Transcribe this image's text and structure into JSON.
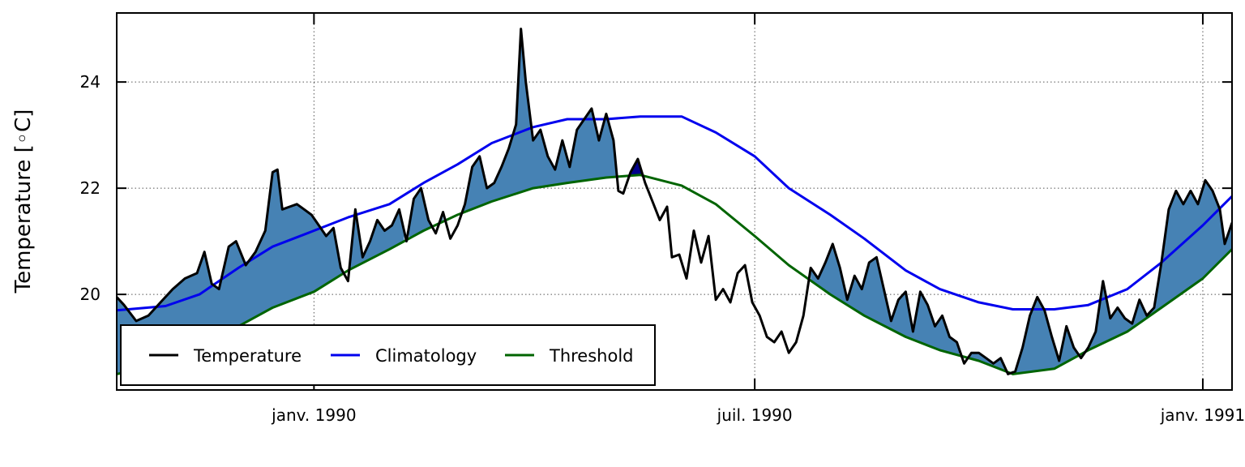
{
  "chart_data": {
    "type": "line",
    "title": "",
    "xlabel": "",
    "ylabel": "Temperature [◦C]",
    "x_range": [
      "1989-10-12",
      "1991-01-13"
    ],
    "ylim": [
      18.2,
      25.3
    ],
    "y_ticks": [
      20,
      22,
      24
    ],
    "x_ticks": [
      {
        "date": "1990-01-01",
        "label": "janv. 1990"
      },
      {
        "date": "1990-07-01",
        "label": "juil. 1990"
      },
      {
        "date": "1991-01-01",
        "label": "janv. 1991"
      }
    ],
    "grid": true,
    "grid_style": "dotted",
    "legend_position": "lower-left",
    "colors": {
      "temperature": "#000000",
      "climatology": "#0000ee",
      "threshold": "#006400",
      "event_fill": "#00008b",
      "exceedance_fill": "#4682b4"
    },
    "series": [
      {
        "name": "Temperature",
        "key": "temperature",
        "points": [
          [
            "1989-10-12",
            19.95
          ],
          [
            "1989-10-15",
            19.8
          ],
          [
            "1989-10-20",
            19.5
          ],
          [
            "1989-10-25",
            19.6
          ],
          [
            "1989-10-30",
            19.85
          ],
          [
            "1989-11-04",
            20.1
          ],
          [
            "1989-11-09",
            20.3
          ],
          [
            "1989-11-14",
            20.4
          ],
          [
            "1989-11-17",
            20.8
          ],
          [
            "1989-11-20",
            20.2
          ],
          [
            "1989-11-23",
            20.1
          ],
          [
            "1989-11-27",
            20.9
          ],
          [
            "1989-11-30",
            21.0
          ],
          [
            "1989-12-04",
            20.55
          ],
          [
            "1989-12-08",
            20.8
          ],
          [
            "1989-12-12",
            21.2
          ],
          [
            "1989-12-15",
            22.3
          ],
          [
            "1989-12-17",
            22.35
          ],
          [
            "1989-12-19",
            21.6
          ],
          [
            "1989-12-22",
            21.65
          ],
          [
            "1989-12-25",
            21.7
          ],
          [
            "1989-12-28",
            21.6
          ],
          [
            "1989-12-31",
            21.5
          ],
          [
            "1990-01-03",
            21.3
          ],
          [
            "1990-01-06",
            21.1
          ],
          [
            "1990-01-09",
            21.25
          ],
          [
            "1990-01-12",
            20.5
          ],
          [
            "1990-01-15",
            20.25
          ],
          [
            "1990-01-18",
            21.6
          ],
          [
            "1990-01-21",
            20.7
          ],
          [
            "1990-01-24",
            21.0
          ],
          [
            "1990-01-27",
            21.4
          ],
          [
            "1990-01-30",
            21.2
          ],
          [
            "1990-02-02",
            21.3
          ],
          [
            "1990-02-05",
            21.6
          ],
          [
            "1990-02-08",
            21.0
          ],
          [
            "1990-02-11",
            21.8
          ],
          [
            "1990-02-14",
            22.0
          ],
          [
            "1990-02-17",
            21.4
          ],
          [
            "1990-02-20",
            21.15
          ],
          [
            "1990-02-23",
            21.55
          ],
          [
            "1990-02-26",
            21.05
          ],
          [
            "1990-03-01",
            21.3
          ],
          [
            "1990-03-04",
            21.7
          ],
          [
            "1990-03-07",
            22.4
          ],
          [
            "1990-03-10",
            22.6
          ],
          [
            "1990-03-13",
            22.0
          ],
          [
            "1990-03-16",
            22.1
          ],
          [
            "1990-03-19",
            22.4
          ],
          [
            "1990-03-22",
            22.75
          ],
          [
            "1990-03-25",
            23.2
          ],
          [
            "1990-03-27",
            25.0
          ],
          [
            "1990-03-29",
            24.0
          ],
          [
            "1990-04-01",
            22.9
          ],
          [
            "1990-04-04",
            23.1
          ],
          [
            "1990-04-07",
            22.6
          ],
          [
            "1990-04-10",
            22.35
          ],
          [
            "1990-04-13",
            22.9
          ],
          [
            "1990-04-16",
            22.4
          ],
          [
            "1990-04-19",
            23.1
          ],
          [
            "1990-04-22",
            23.3
          ],
          [
            "1990-04-25",
            23.5
          ],
          [
            "1990-04-28",
            22.9
          ],
          [
            "1990-05-01",
            23.4
          ],
          [
            "1990-05-04",
            22.9
          ],
          [
            "1990-05-06",
            21.95
          ],
          [
            "1990-05-08",
            21.9
          ],
          [
            "1990-05-11",
            22.3
          ],
          [
            "1990-05-14",
            22.55
          ],
          [
            "1990-05-17",
            22.1
          ],
          [
            "1990-05-20",
            21.75
          ],
          [
            "1990-05-23",
            21.4
          ],
          [
            "1990-05-26",
            21.65
          ],
          [
            "1990-05-28",
            20.7
          ],
          [
            "1990-05-31",
            20.75
          ],
          [
            "1990-06-03",
            20.3
          ],
          [
            "1990-06-06",
            21.2
          ],
          [
            "1990-06-09",
            20.6
          ],
          [
            "1990-06-12",
            21.1
          ],
          [
            "1990-06-15",
            19.9
          ],
          [
            "1990-06-18",
            20.1
          ],
          [
            "1990-06-21",
            19.85
          ],
          [
            "1990-06-24",
            20.4
          ],
          [
            "1990-06-27",
            20.55
          ],
          [
            "1990-06-30",
            19.85
          ],
          [
            "1990-07-03",
            19.6
          ],
          [
            "1990-07-06",
            19.2
          ],
          [
            "1990-07-09",
            19.1
          ],
          [
            "1990-07-12",
            19.3
          ],
          [
            "1990-07-15",
            18.9
          ],
          [
            "1990-07-18",
            19.1
          ],
          [
            "1990-07-21",
            19.6
          ],
          [
            "1990-07-24",
            20.5
          ],
          [
            "1990-07-27",
            20.3
          ],
          [
            "1990-07-30",
            20.6
          ],
          [
            "1990-08-02",
            20.95
          ],
          [
            "1990-08-05",
            20.5
          ],
          [
            "1990-08-08",
            19.9
          ],
          [
            "1990-08-11",
            20.35
          ],
          [
            "1990-08-14",
            20.1
          ],
          [
            "1990-08-17",
            20.6
          ],
          [
            "1990-08-20",
            20.7
          ],
          [
            "1990-08-23",
            20.1
          ],
          [
            "1990-08-26",
            19.5
          ],
          [
            "1990-08-29",
            19.9
          ],
          [
            "1990-09-01",
            20.05
          ],
          [
            "1990-09-04",
            19.3
          ],
          [
            "1990-09-07",
            20.05
          ],
          [
            "1990-09-10",
            19.8
          ],
          [
            "1990-09-13",
            19.4
          ],
          [
            "1990-09-16",
            19.6
          ],
          [
            "1990-09-19",
            19.2
          ],
          [
            "1990-09-22",
            19.1
          ],
          [
            "1990-09-25",
            18.7
          ],
          [
            "1990-09-28",
            18.9
          ],
          [
            "1990-10-01",
            18.9
          ],
          [
            "1990-10-04",
            18.8
          ],
          [
            "1990-10-07",
            18.7
          ],
          [
            "1990-10-10",
            18.8
          ],
          [
            "1990-10-13",
            18.5
          ],
          [
            "1990-10-16",
            18.55
          ],
          [
            "1990-10-19",
            19.0
          ],
          [
            "1990-10-22",
            19.6
          ],
          [
            "1990-10-25",
            19.95
          ],
          [
            "1990-10-28",
            19.7
          ],
          [
            "1990-10-31",
            19.2
          ],
          [
            "1990-11-03",
            18.75
          ],
          [
            "1990-11-06",
            19.4
          ],
          [
            "1990-11-09",
            19.0
          ],
          [
            "1990-11-12",
            18.8
          ],
          [
            "1990-11-15",
            19.0
          ],
          [
            "1990-11-18",
            19.3
          ],
          [
            "1990-11-21",
            20.25
          ],
          [
            "1990-11-24",
            19.55
          ],
          [
            "1990-11-27",
            19.75
          ],
          [
            "1990-11-30",
            19.55
          ],
          [
            "1990-12-03",
            19.45
          ],
          [
            "1990-12-06",
            19.9
          ],
          [
            "1990-12-09",
            19.6
          ],
          [
            "1990-12-12",
            19.75
          ],
          [
            "1990-12-15",
            20.6
          ],
          [
            "1990-12-18",
            21.6
          ],
          [
            "1990-12-21",
            21.95
          ],
          [
            "1990-12-24",
            21.7
          ],
          [
            "1990-12-27",
            21.95
          ],
          [
            "1990-12-30",
            21.7
          ],
          [
            "1991-01-02",
            22.15
          ],
          [
            "1991-01-05",
            21.95
          ],
          [
            "1991-01-08",
            21.6
          ],
          [
            "1991-01-10",
            20.95
          ],
          [
            "1991-01-13",
            21.35
          ]
        ]
      },
      {
        "name": "Climatology",
        "key": "climatology",
        "points": [
          [
            "1989-10-12",
            19.7
          ],
          [
            "1989-11-01",
            19.78
          ],
          [
            "1989-11-15",
            20.0
          ],
          [
            "1989-12-01",
            20.5
          ],
          [
            "1989-12-15",
            20.9
          ],
          [
            "1990-01-01",
            21.2
          ],
          [
            "1990-01-15",
            21.45
          ],
          [
            "1990-02-01",
            21.7
          ],
          [
            "1990-02-15",
            22.1
          ],
          [
            "1990-03-01",
            22.45
          ],
          [
            "1990-03-15",
            22.85
          ],
          [
            "1990-04-01",
            23.15
          ],
          [
            "1990-04-15",
            23.3
          ],
          [
            "1990-05-01",
            23.3
          ],
          [
            "1990-05-15",
            23.35
          ],
          [
            "1990-06-01",
            23.35
          ],
          [
            "1990-06-15",
            23.05
          ],
          [
            "1990-07-01",
            22.6
          ],
          [
            "1990-07-15",
            22.0
          ],
          [
            "1990-08-01",
            21.5
          ],
          [
            "1990-08-15",
            21.05
          ],
          [
            "1990-09-01",
            20.45
          ],
          [
            "1990-09-15",
            20.1
          ],
          [
            "1990-10-01",
            19.85
          ],
          [
            "1990-10-15",
            19.72
          ],
          [
            "1990-11-01",
            19.72
          ],
          [
            "1990-11-15",
            19.8
          ],
          [
            "1990-12-01",
            20.1
          ],
          [
            "1990-12-15",
            20.6
          ],
          [
            "1991-01-01",
            21.3
          ],
          [
            "1991-01-13",
            21.85
          ]
        ]
      },
      {
        "name": "Threshold",
        "key": "threshold",
        "points": [
          [
            "1989-10-12",
            18.5
          ],
          [
            "1989-11-01",
            18.7
          ],
          [
            "1989-11-15",
            19.05
          ],
          [
            "1989-12-01",
            19.4
          ],
          [
            "1989-12-15",
            19.75
          ],
          [
            "1990-01-01",
            20.05
          ],
          [
            "1990-01-15",
            20.45
          ],
          [
            "1990-02-01",
            20.85
          ],
          [
            "1990-02-15",
            21.2
          ],
          [
            "1990-03-01",
            21.5
          ],
          [
            "1990-03-15",
            21.75
          ],
          [
            "1990-04-01",
            22.0
          ],
          [
            "1990-04-15",
            22.1
          ],
          [
            "1990-05-01",
            22.2
          ],
          [
            "1990-05-15",
            22.25
          ],
          [
            "1990-06-01",
            22.05
          ],
          [
            "1990-06-15",
            21.7
          ],
          [
            "1990-07-01",
            21.1
          ],
          [
            "1990-07-15",
            20.55
          ],
          [
            "1990-08-01",
            20.0
          ],
          [
            "1990-08-15",
            19.6
          ],
          [
            "1990-09-01",
            19.2
          ],
          [
            "1990-09-15",
            18.95
          ],
          [
            "1990-10-01",
            18.75
          ],
          [
            "1990-10-15",
            18.5
          ],
          [
            "1990-11-01",
            18.6
          ],
          [
            "1990-11-15",
            18.95
          ],
          [
            "1990-12-01",
            19.3
          ],
          [
            "1990-12-15",
            19.75
          ],
          [
            "1991-01-01",
            20.3
          ],
          [
            "1991-01-13",
            20.85
          ]
        ]
      }
    ]
  }
}
